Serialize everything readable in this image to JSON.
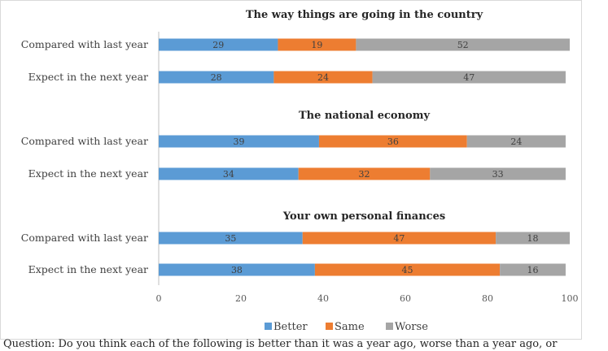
{
  "chart_data": {
    "type": "bar",
    "orientation": "horizontal",
    "stacked": true,
    "groups": [
      {
        "title": "The way things are going in the country",
        "categories": [
          "Compared with last year",
          "Expect in the next year"
        ],
        "series": [
          {
            "name": "Better",
            "values": [
              29,
              28
            ]
          },
          {
            "name": "Same",
            "values": [
              19,
              24
            ]
          },
          {
            "name": "Worse",
            "values": [
              52,
              47
            ]
          }
        ]
      },
      {
        "title": "The national economy",
        "categories": [
          "Compared with last year",
          "Expect in the next year"
        ],
        "series": [
          {
            "name": "Better",
            "values": [
              39,
              34
            ]
          },
          {
            "name": "Same",
            "values": [
              36,
              32
            ]
          },
          {
            "name": "Worse",
            "values": [
              24,
              33
            ]
          }
        ]
      },
      {
        "title": "Your own personal finances",
        "categories": [
          "Compared with last year",
          "Expect in the next year"
        ],
        "series": [
          {
            "name": "Better",
            "values": [
              35,
              38
            ]
          },
          {
            "name": "Same",
            "values": [
              47,
              45
            ]
          },
          {
            "name": "Worse",
            "values": [
              18,
              16
            ]
          }
        ]
      }
    ],
    "x_ticks": [
      "0",
      "20",
      "40",
      "60",
      "80",
      "100"
    ],
    "xlim": [
      0,
      100
    ],
    "legend": [
      "Better",
      "Same",
      "Worse"
    ],
    "legend_position": "bottom",
    "colors": {
      "Better": "#5b9bd5",
      "Same": "#ed7d31",
      "Worse": "#a5a5a5"
    },
    "grid": false
  },
  "footnote": "Question: Do you think each of the following is better than it was a year ago, worse than a year ago, or"
}
